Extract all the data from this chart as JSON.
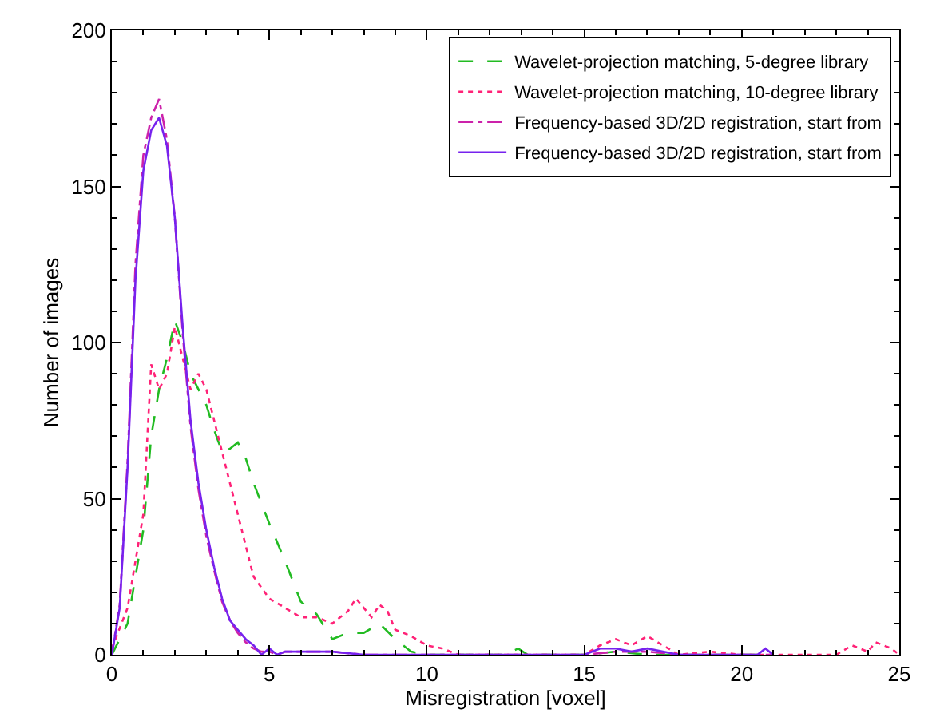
{
  "chart_data": {
    "type": "line",
    "xlabel": "Misregistration [voxel]",
    "ylabel": "Number of images",
    "xlim": [
      0,
      25
    ],
    "xticks": [
      0,
      5,
      10,
      15,
      20,
      25
    ],
    "ylim": [
      0,
      200
    ],
    "yticks": [
      0,
      50,
      100,
      150,
      200
    ],
    "legend": "top right",
    "marker": "none",
    "series": [
      {
        "name": "Wavelet-projection matching, 5-degree library",
        "color": "#22bb22",
        "line_style": "dashed",
        "x": [
          0,
          0.5,
          1.0,
          1.25,
          1.5,
          1.75,
          2.0,
          2.25,
          2.5,
          2.75,
          3.0,
          3.25,
          3.5,
          3.75,
          4.0,
          4.25,
          4.5,
          5.0,
          5.5,
          6.0,
          6.5,
          7.0,
          7.5,
          8.0,
          8.5,
          9.0,
          9.5,
          10,
          12.5,
          12.9,
          13.2,
          15,
          16,
          17,
          20,
          21
        ],
        "values": [
          0,
          10,
          40,
          70,
          85,
          95,
          107,
          100,
          90,
          85,
          80,
          72,
          65,
          66,
          68,
          63,
          55,
          42,
          30,
          17,
          13,
          5,
          7,
          7,
          10,
          5,
          1,
          0,
          0,
          2,
          0,
          0,
          1,
          0,
          0,
          0
        ]
      },
      {
        "name": "Wavelet-projection matching, 10-degree library",
        "color": "#ff2277",
        "line_style": "dotted",
        "x": [
          0,
          0.5,
          1.0,
          1.25,
          1.5,
          1.75,
          2.0,
          2.25,
          2.5,
          2.75,
          3.0,
          3.25,
          3.5,
          3.75,
          4.0,
          4.25,
          4.5,
          5.0,
          5.5,
          6.0,
          6.5,
          7.0,
          7.5,
          7.75,
          8.0,
          8.25,
          8.5,
          8.75,
          9.0,
          9.5,
          10,
          10.5,
          11,
          15,
          15.5,
          16,
          16.5,
          17,
          17.5,
          18,
          19,
          20,
          23,
          23.5,
          24,
          24.25,
          24.75,
          25
        ],
        "values": [
          2,
          15,
          45,
          93,
          85,
          90,
          105,
          95,
          85,
          90,
          85,
          75,
          65,
          55,
          45,
          35,
          25,
          18,
          15,
          12,
          12,
          10,
          14,
          18,
          15,
          12,
          16,
          14,
          8,
          6,
          3,
          2,
          0,
          0,
          3,
          5,
          3,
          6,
          3,
          0,
          1,
          0,
          0,
          3,
          1,
          4,
          2,
          0
        ]
      },
      {
        "name": "Frequency-based 3D/2D registration, start from",
        "color": "#cc22aa",
        "line_style": "dashdot",
        "x": [
          0,
          0.25,
          0.5,
          0.75,
          1.0,
          1.25,
          1.5,
          1.75,
          2.0,
          2.25,
          2.5,
          2.75,
          3.0,
          3.25,
          3.5,
          3.75,
          4.0,
          4.25,
          4.5,
          4.75,
          5.0,
          5.25,
          5.5,
          6,
          7,
          8,
          10,
          15,
          16,
          17,
          18,
          21
        ],
        "values": [
          0,
          16,
          62,
          125,
          160,
          172,
          178,
          165,
          140,
          103,
          73,
          53,
          38,
          27,
          17,
          11,
          7,
          4,
          2,
          1,
          1,
          0,
          1,
          1,
          1,
          0,
          0,
          0,
          1,
          1,
          0,
          0
        ]
      },
      {
        "name": "Frequency-based 3D/2D registration, start from",
        "color": "#7722ee",
        "line_style": "solid",
        "x": [
          0,
          0.25,
          0.5,
          0.75,
          1.0,
          1.25,
          1.5,
          1.75,
          2.0,
          2.25,
          2.5,
          2.75,
          3.0,
          3.25,
          3.5,
          3.75,
          4.0,
          4.25,
          4.5,
          4.75,
          5.0,
          5.25,
          5.5,
          6,
          7,
          8,
          10,
          12,
          15,
          15.5,
          16,
          16.5,
          17,
          18,
          20.5,
          20.75,
          21
        ],
        "values": [
          0,
          15,
          60,
          120,
          155,
          168,
          172,
          163,
          140,
          105,
          75,
          55,
          40,
          28,
          18,
          11,
          8,
          5,
          3,
          0,
          2,
          0,
          1,
          1,
          1,
          0,
          0,
          0,
          0,
          2,
          2,
          1,
          2,
          0,
          0,
          2,
          0
        ]
      }
    ]
  }
}
